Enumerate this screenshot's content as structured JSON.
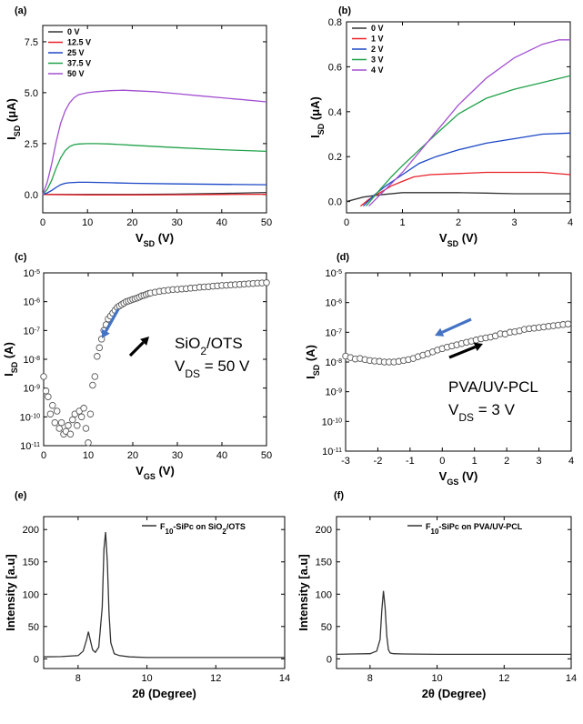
{
  "chart_data": [
    {
      "panel": "(a)",
      "type": "line",
      "xlabel": "V_SD (V)",
      "ylabel": "I_SD (μA)",
      "xlim": [
        0,
        50
      ],
      "ylim": [
        -0.9,
        8.3
      ],
      "xticks": [
        "0",
        "10",
        "20",
        "30",
        "40",
        "50"
      ],
      "yticks": [
        "0.0",
        "2.5",
        "5.0",
        "7.5"
      ],
      "xtickvals": [
        0,
        10,
        20,
        30,
        40,
        50
      ],
      "ytickvals": [
        0,
        2.5,
        5,
        7.5
      ],
      "legend_position": "top-left",
      "series": [
        {
          "name": "0 V",
          "color": "#333333",
          "x": [
            0,
            10,
            20,
            30,
            40,
            50
          ],
          "y": [
            0,
            0,
            0,
            0.02,
            0.05,
            0.1
          ]
        },
        {
          "name": "12.5 V",
          "color": "#e8212a",
          "x": [
            0,
            10,
            20,
            30,
            40,
            50
          ],
          "y": [
            0,
            -0.02,
            -0.02,
            -0.01,
            0,
            0.01
          ]
        },
        {
          "name": "25 V",
          "color": "#1a47c6",
          "x": [
            0,
            1,
            2,
            3,
            4,
            5,
            6,
            8,
            10,
            15,
            20,
            30,
            40,
            50
          ],
          "y": [
            0,
            0.08,
            0.2,
            0.35,
            0.48,
            0.55,
            0.58,
            0.6,
            0.6,
            0.58,
            0.55,
            0.52,
            0.5,
            0.48
          ]
        },
        {
          "name": "37.5 V",
          "color": "#21a24a",
          "x": [
            0,
            1,
            2,
            3,
            4,
            5,
            6,
            7,
            8,
            10,
            12,
            15,
            20,
            30,
            40,
            50
          ],
          "y": [
            0,
            0.25,
            0.7,
            1.3,
            1.8,
            2.15,
            2.35,
            2.45,
            2.48,
            2.5,
            2.5,
            2.48,
            2.42,
            2.3,
            2.2,
            2.12
          ]
        },
        {
          "name": "50 V",
          "color": "#a24fd1",
          "x": [
            0,
            1,
            2,
            3,
            4,
            5,
            6,
            7,
            8,
            10,
            12,
            15,
            18,
            20,
            25,
            30,
            35,
            40,
            45,
            50
          ],
          "y": [
            0,
            0.6,
            1.5,
            2.6,
            3.5,
            4.1,
            4.5,
            4.75,
            4.9,
            5.0,
            5.05,
            5.1,
            5.12,
            5.1,
            5.05,
            4.95,
            4.85,
            4.75,
            4.65,
            4.55
          ]
        }
      ]
    },
    {
      "panel": "(b)",
      "type": "line",
      "xlabel": "V_SD (V)",
      "ylabel": "I_SD (μA)",
      "xlim": [
        0,
        4
      ],
      "ylim": [
        -0.05,
        0.8
      ],
      "xticks": [
        "0",
        "1",
        "2",
        "3",
        "4"
      ],
      "yticks": [
        "0.0",
        "0.2",
        "0.4",
        "0.6",
        "0.8"
      ],
      "xtickvals": [
        0,
        1,
        2,
        3,
        4
      ],
      "ytickvals": [
        0,
        0.2,
        0.4,
        0.6,
        0.8
      ],
      "legend_position": "top-left",
      "series": [
        {
          "name": "0 V",
          "color": "#333333",
          "x": [
            0,
            0.3,
            0.6,
            1,
            1.5,
            2,
            2.5,
            3,
            3.5,
            4
          ],
          "y": [
            0,
            0.02,
            0.03,
            0.04,
            0.04,
            0.04,
            0.038,
            0.035,
            0.035,
            0.035
          ]
        },
        {
          "name": "1 V",
          "color": "#e8212a",
          "x": [
            0.25,
            0.4,
            0.6,
            0.8,
            1,
            1.2,
            1.5,
            2,
            2.5,
            3,
            3.5,
            4
          ],
          "y": [
            -0.02,
            0.01,
            0.04,
            0.07,
            0.09,
            0.11,
            0.12,
            0.125,
            0.13,
            0.13,
            0.13,
            0.12
          ]
        },
        {
          "name": "2 V",
          "color": "#1a47c6",
          "x": [
            0.3,
            0.5,
            0.7,
            1,
            1.3,
            1.6,
            2,
            2.5,
            3,
            3.5,
            4
          ],
          "y": [
            -0.02,
            0.03,
            0.07,
            0.12,
            0.17,
            0.2,
            0.23,
            0.26,
            0.28,
            0.3,
            0.305
          ]
        },
        {
          "name": "3 V",
          "color": "#21a24a",
          "x": [
            0.35,
            0.55,
            0.8,
            1,
            1.3,
            1.6,
            2,
            2.5,
            3,
            3.5,
            4
          ],
          "y": [
            -0.02,
            0.04,
            0.11,
            0.16,
            0.23,
            0.3,
            0.39,
            0.46,
            0.5,
            0.53,
            0.56
          ]
        },
        {
          "name": "4 V",
          "color": "#a24fd1",
          "x": [
            0.4,
            0.6,
            0.8,
            1,
            1.3,
            1.6,
            2,
            2.5,
            3,
            3.5,
            3.8,
            4
          ],
          "y": [
            -0.02,
            0.03,
            0.08,
            0.13,
            0.22,
            0.31,
            0.43,
            0.55,
            0.64,
            0.7,
            0.72,
            0.72
          ]
        }
      ]
    },
    {
      "panel": "(c)",
      "type": "scatter",
      "yscale": "log",
      "xlabel": "V_GS (V)",
      "ylabel": "I_SD (A)",
      "xlim": [
        0,
        50
      ],
      "ylim_log10": [
        -11,
        -5
      ],
      "xticks": [
        "0",
        "10",
        "20",
        "30",
        "40",
        "50"
      ],
      "xtickvals": [
        0,
        10,
        20,
        30,
        40,
        50
      ],
      "yticks_exp": [
        -11,
        -10,
        -9,
        -8,
        -7,
        -6,
        -5
      ],
      "annotation_lines": [
        "SiO",
        "2",
        "/OTS",
        "V",
        "DS",
        " = 50 V"
      ],
      "arrows": [
        {
          "direction": "down-left",
          "color": "#4472c4"
        },
        {
          "direction": "up-right",
          "color": "#000000"
        }
      ],
      "points_x": [
        0,
        0.5,
        1,
        1.5,
        2,
        2.5,
        3,
        3.5,
        4,
        4.5,
        5,
        5.5,
        6,
        6.5,
        7,
        7.5,
        8,
        8.5,
        9,
        9.5,
        10,
        10.5,
        11,
        11.5,
        12,
        12.5,
        13,
        13.5,
        14,
        14.5,
        15,
        15.5,
        16,
        16.5,
        17,
        17.5,
        18,
        18.5,
        19,
        19.5,
        20,
        20.5,
        21,
        21.5,
        22,
        22.5,
        23,
        23.5,
        24,
        25,
        26,
        27,
        28,
        29,
        30,
        31,
        32,
        33,
        34,
        35,
        36,
        37,
        38,
        39,
        40,
        41,
        42,
        43,
        44,
        45,
        46,
        47,
        48,
        49,
        50
      ],
      "points_log10": [
        -8.6,
        -9.1,
        -9.3,
        -9.9,
        -9.6,
        -10.2,
        -9.8,
        -10.4,
        -10.2,
        -10.6,
        -10.5,
        -10.3,
        -10.6,
        -10.1,
        -9.9,
        -10.3,
        -9.8,
        -10.0,
        -9.7,
        -10.4,
        -10.9,
        -9.9,
        -8.9,
        -8.6,
        -7.9,
        -7.6,
        -7.3,
        -7.0,
        -6.8,
        -6.6,
        -6.5,
        -6.4,
        -6.3,
        -6.2,
        -6.15,
        -6.1,
        -6.05,
        -6.0,
        -5.98,
        -5.95,
        -5.92,
        -5.9,
        -5.87,
        -5.84,
        -5.8,
        -5.78,
        -5.75,
        -5.72,
        -5.7,
        -5.67,
        -5.64,
        -5.62,
        -5.6,
        -5.58,
        -5.57,
        -5.56,
        -5.55,
        -5.53,
        -5.52,
        -5.5,
        -5.49,
        -5.48,
        -5.46,
        -5.45,
        -5.44,
        -5.43,
        -5.42,
        -5.41,
        -5.4,
        -5.39,
        -5.38,
        -5.37,
        -5.36,
        -5.35,
        -5.34
      ]
    },
    {
      "panel": "(d)",
      "type": "scatter",
      "yscale": "log",
      "xlabel": "V_GS (V)",
      "ylabel": "I_SD (A)",
      "xlim": [
        -3,
        4
      ],
      "ylim_log10": [
        -11,
        -5
      ],
      "xticks": [
        "-3",
        "-2",
        "-1",
        "0",
        "1",
        "2",
        "3",
        "4"
      ],
      "xtickvals": [
        -3,
        -2,
        -1,
        0,
        1,
        2,
        3,
        4
      ],
      "yticks_exp": [
        -11,
        -10,
        -9,
        -8,
        -7,
        -6,
        -5
      ],
      "annotation_lines": [
        "PVA/UV-PCL",
        "V",
        "DS",
        " = 3 V"
      ],
      "arrows": [
        {
          "direction": "down-left",
          "color": "#4472c4"
        },
        {
          "direction": "up-right",
          "color": "#000000"
        }
      ],
      "points_x": [
        -3,
        -2.85,
        -2.7,
        -2.55,
        -2.4,
        -2.25,
        -2.1,
        -1.95,
        -1.8,
        -1.65,
        -1.5,
        -1.35,
        -1.2,
        -1.05,
        -0.9,
        -0.75,
        -0.6,
        -0.45,
        -0.3,
        -0.15,
        0,
        0.15,
        0.3,
        0.45,
        0.6,
        0.75,
        0.9,
        1.05,
        1.2,
        1.35,
        1.5,
        1.65,
        1.8,
        1.95,
        2.1,
        2.25,
        2.4,
        2.55,
        2.7,
        2.85,
        3,
        3.15,
        3.3,
        3.45,
        3.6,
        3.75,
        3.9
      ],
      "points_log10": [
        -7.8,
        -7.85,
        -7.9,
        -7.88,
        -7.92,
        -7.95,
        -7.97,
        -7.98,
        -8.0,
        -8.0,
        -8.0,
        -7.98,
        -7.95,
        -7.92,
        -7.88,
        -7.82,
        -7.77,
        -7.72,
        -7.66,
        -7.6,
        -7.55,
        -7.5,
        -7.46,
        -7.42,
        -7.38,
        -7.34,
        -7.3,
        -7.26,
        -7.22,
        -7.19,
        -7.16,
        -7.12,
        -7.05,
        -7.06,
        -7.0,
        -6.98,
        -6.95,
        -6.9,
        -6.88,
        -6.86,
        -6.84,
        -6.82,
        -6.8,
        -6.78,
        -6.76,
        -6.74,
        -6.72
      ]
    },
    {
      "panel": "(e)",
      "type": "line",
      "xlabel": "2θ (Degree)",
      "ylabel": "Intensity [a.u]",
      "xlim": [
        7,
        14
      ],
      "ylim": [
        -15,
        220
      ],
      "xticks": [
        "8",
        "10",
        "12",
        "14"
      ],
      "xtickvals": [
        8,
        10,
        12,
        14
      ],
      "yticks": [
        "0",
        "50",
        "100",
        "150",
        "200"
      ],
      "ytickvals": [
        0,
        50,
        100,
        150,
        200
      ],
      "legend_position": "top-right",
      "series": [
        {
          "name": "F10-SiPc on SiO2/OTS",
          "legend_parts": [
            "F",
            "10",
            "-SiPc on SiO",
            "2",
            "/OTS"
          ],
          "color": "#333333",
          "x": [
            7,
            7.5,
            8,
            8.15,
            8.25,
            8.3,
            8.35,
            8.42,
            8.5,
            8.6,
            8.7,
            8.75,
            8.8,
            8.85,
            8.9,
            8.95,
            9.05,
            9.2,
            9.5,
            10,
            11,
            12,
            13,
            14
          ],
          "y": [
            3,
            3.5,
            5,
            12,
            30,
            42,
            30,
            14,
            10,
            18,
            80,
            170,
            196,
            150,
            70,
            25,
            8,
            5,
            3,
            2,
            2,
            2,
            2,
            2
          ]
        }
      ]
    },
    {
      "panel": "(f)",
      "type": "line",
      "xlabel": "2θ (Degree)",
      "ylabel": "Intensity [a.u]",
      "xlim": [
        7,
        14
      ],
      "ylim": [
        -15,
        220
      ],
      "xticks": [
        "8",
        "10",
        "12",
        "14"
      ],
      "xtickvals": [
        8,
        10,
        12,
        14
      ],
      "yticks": [
        "0",
        "50",
        "100",
        "150",
        "200"
      ],
      "ytickvals": [
        0,
        50,
        100,
        150,
        200
      ],
      "legend_position": "top-right",
      "series": [
        {
          "name": "F10-SiPc on PVA/UV-PCL",
          "legend_parts": [
            "F",
            "10",
            "-SiPc on PVA/UV-PCL"
          ],
          "color": "#333333",
          "x": [
            7,
            7.5,
            8,
            8.2,
            8.3,
            8.35,
            8.4,
            8.45,
            8.5,
            8.55,
            8.6,
            8.7,
            9,
            10,
            11,
            12,
            13,
            14
          ],
          "y": [
            7,
            7.5,
            8,
            12,
            30,
            75,
            105,
            80,
            35,
            14,
            9,
            8,
            7.5,
            7,
            7,
            7,
            7,
            7
          ]
        }
      ]
    }
  ]
}
